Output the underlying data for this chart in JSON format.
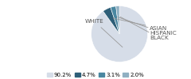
{
  "labels": [
    "WHITE",
    "ASIAN",
    "HISPANIC",
    "BLACK"
  ],
  "values": [
    90.2,
    4.7,
    3.1,
    2.0
  ],
  "colors": [
    "#d6dde8",
    "#2e5f78",
    "#4a87a0",
    "#90b0c2"
  ],
  "legend_labels": [
    "90.2%",
    "4.7%",
    "3.1%",
    "2.0%"
  ],
  "startangle": 90,
  "figsize": [
    2.4,
    1.0
  ],
  "dpi": 100,
  "white_label": "WHITE",
  "right_labels": [
    "ASIAN",
    "HISPANIC",
    "BLACK"
  ]
}
